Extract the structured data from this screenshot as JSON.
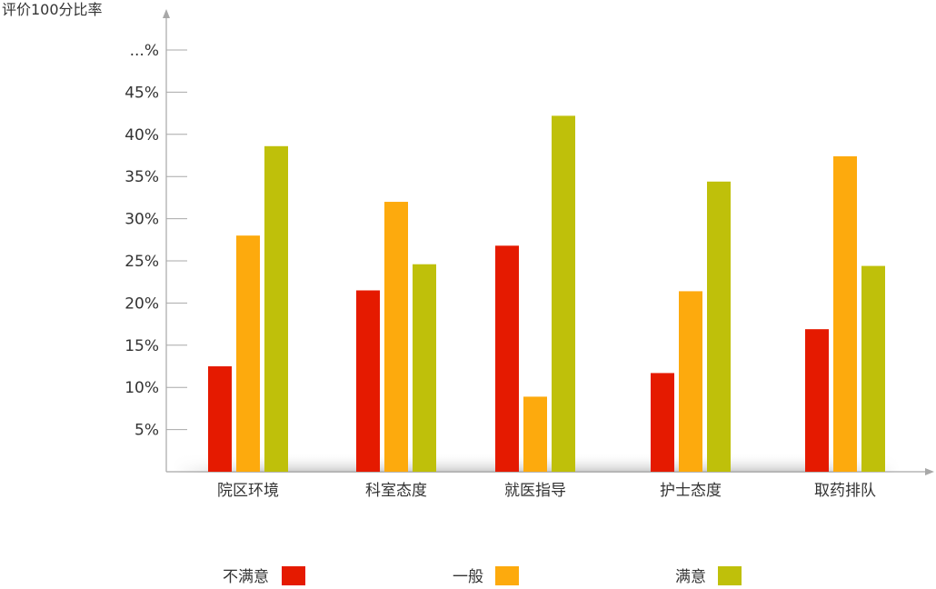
{
  "chart_data": {
    "type": "bar",
    "ylabel": "评价100分比率",
    "y_ticks": [
      {
        "value": 5,
        "label": "5%"
      },
      {
        "value": 10,
        "label": "10%"
      },
      {
        "value": 15,
        "label": "15%"
      },
      {
        "value": 20,
        "label": "20%"
      },
      {
        "value": 25,
        "label": "25%"
      },
      {
        "value": 30,
        "label": "30%"
      },
      {
        "value": 35,
        "label": "35%"
      },
      {
        "value": 40,
        "label": "40%"
      },
      {
        "value": 45,
        "label": "45%"
      },
      {
        "value": 50,
        "label": "...%"
      }
    ],
    "ylim": [
      0,
      55
    ],
    "grid": false,
    "legend_position": "bottom",
    "categories": [
      "院区环境",
      "科室态度",
      "就医指导",
      "护士态度",
      "取药排队"
    ],
    "series": [
      {
        "name": "不满意",
        "color": "#e51a00",
        "values": [
          12.5,
          21.5,
          26.8,
          11.7,
          16.9
        ]
      },
      {
        "name": "一般",
        "color": "#fdaa0d",
        "values": [
          28.0,
          32.0,
          8.9,
          21.4,
          37.4
        ]
      },
      {
        "name": "满意",
        "color": "#bfc00a",
        "values": [
          38.6,
          24.6,
          42.2,
          34.4,
          24.4
        ]
      }
    ]
  }
}
